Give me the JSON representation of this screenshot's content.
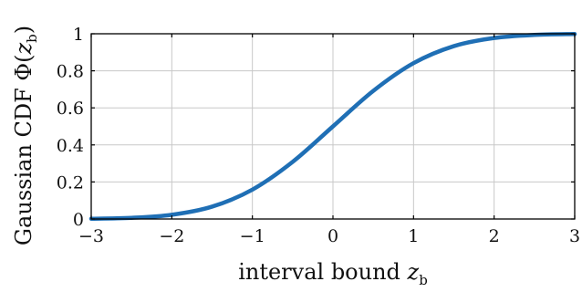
{
  "chart_data": {
    "type": "line",
    "xlabel": {
      "main": "interval bound ",
      "var": "z",
      "sub": "b"
    },
    "ylabel": {
      "main": "Gaussian CDF Φ(",
      "var": "z",
      "sub": "b",
      "close": ")"
    },
    "xlim": [
      -3,
      3
    ],
    "ylim": [
      0,
      1
    ],
    "x_ticks": [
      -3,
      -2,
      -1,
      0,
      1,
      2,
      3
    ],
    "x_tick_labels": [
      "−3",
      "−2",
      "−1",
      "0",
      "1",
      "2",
      "3"
    ],
    "y_ticks": [
      0,
      0.2,
      0.4,
      0.6,
      0.8,
      1
    ],
    "y_tick_labels": [
      "0",
      "0.2",
      "0.4",
      "0.6",
      "0.8",
      "1"
    ],
    "grid": true,
    "series": [
      {
        "color": "#1f6fb5",
        "x": [
          -3,
          -2.5,
          -2,
          -1.5,
          -1,
          -0.5,
          0,
          0.5,
          1,
          1.5,
          2,
          2.5,
          3
        ],
        "y": [
          0.0013,
          0.0062,
          0.0228,
          0.0668,
          0.1587,
          0.3085,
          0.5,
          0.6915,
          0.8413,
          0.9332,
          0.9772,
          0.9938,
          0.9987
        ]
      }
    ]
  }
}
